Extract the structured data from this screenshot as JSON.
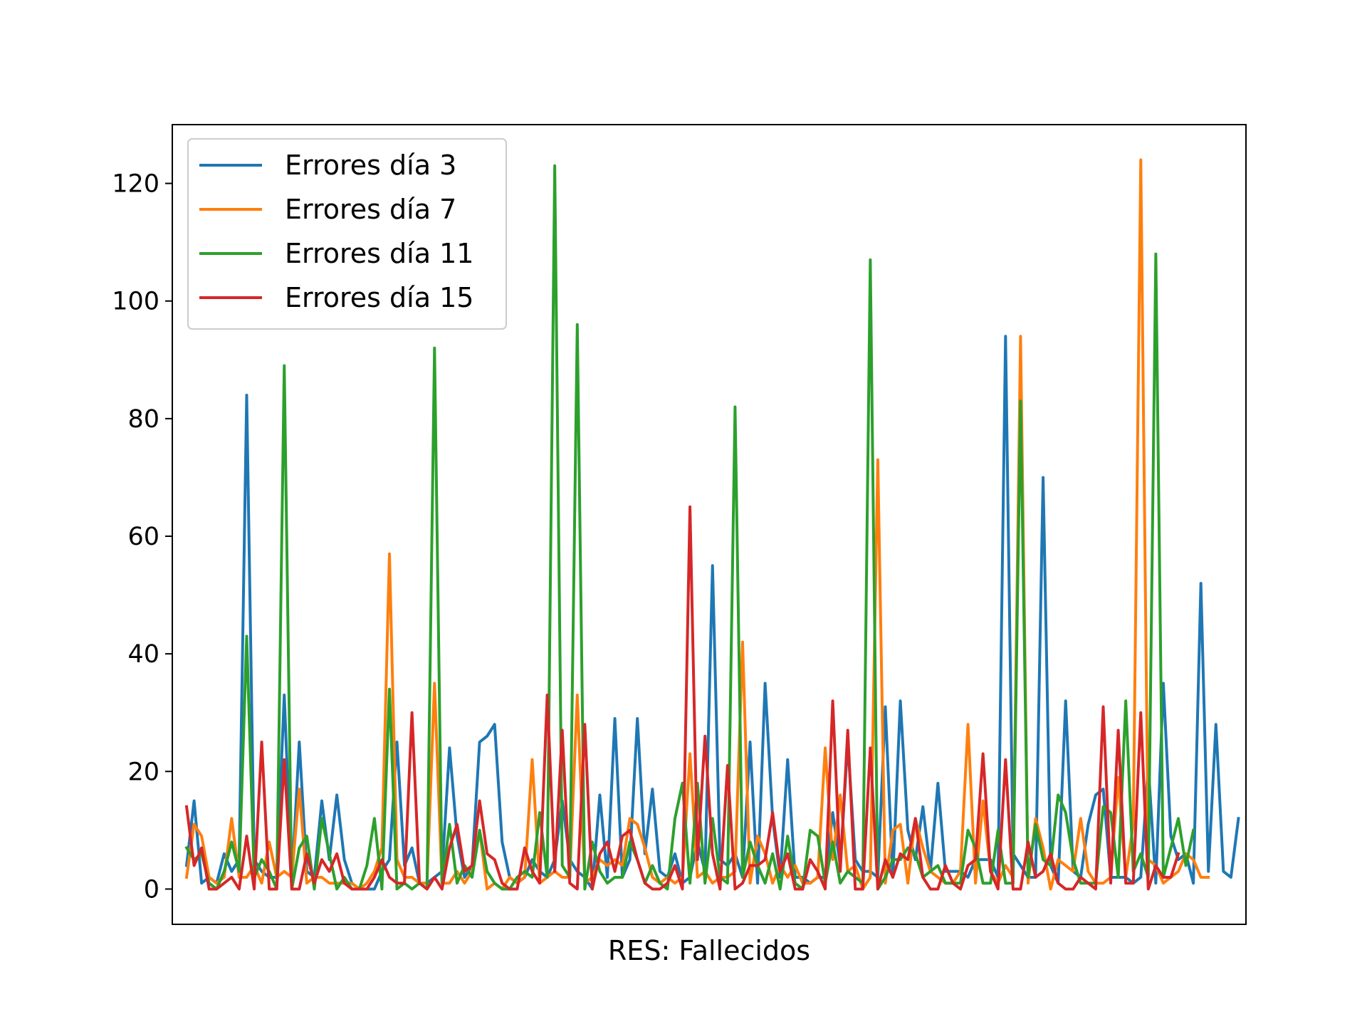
{
  "chart_data": {
    "type": "line",
    "title": "",
    "xlabel": "RES: Fallecidos",
    "ylabel": "",
    "ylim": [
      -6,
      130
    ],
    "xlim": [
      -1.9,
      141
    ],
    "yticks": [
      0,
      20,
      40,
      60,
      80,
      100,
      120
    ],
    "grid": false,
    "legend_position": "top-left",
    "series": [
      {
        "name": "Errores día 3",
        "color": "#1f77b4",
        "values": [
          4,
          15,
          1,
          2,
          1,
          6,
          3,
          5,
          84,
          5,
          3,
          2,
          2,
          33,
          1,
          25,
          3,
          2,
          15,
          5,
          16,
          5,
          1,
          0,
          0,
          0,
          3,
          5,
          25,
          4,
          7,
          1,
          1,
          2,
          3,
          24,
          9,
          2,
          4,
          25,
          26,
          28,
          8,
          2,
          1,
          2,
          5,
          3,
          2,
          5,
          15,
          5,
          3,
          2,
          0,
          16,
          2,
          29,
          2,
          5,
          29,
          6,
          17,
          3,
          2,
          6,
          1,
          2,
          8,
          3,
          55,
          5,
          4,
          6,
          2,
          25,
          1,
          35,
          12,
          2,
          22,
          2,
          2,
          1,
          2,
          2,
          13,
          4,
          25,
          5,
          3,
          3,
          2,
          31,
          2,
          32,
          10,
          5,
          14,
          3,
          18,
          3,
          3,
          3,
          2,
          5,
          5,
          5,
          2,
          94,
          6,
          4,
          2,
          2,
          70,
          4,
          1,
          32,
          3,
          2,
          11,
          16,
          17,
          2,
          2,
          2,
          1,
          2,
          21,
          1,
          35,
          9,
          5,
          6,
          1,
          52,
          3,
          28,
          3,
          2,
          12
        ]
      },
      {
        "name": "Errores día 7",
        "color": "#ff7f0e",
        "values": [
          2,
          11,
          9,
          2,
          1,
          2,
          12,
          2,
          2,
          4,
          1,
          8,
          2,
          3,
          2,
          17,
          1,
          2,
          2,
          1,
          1,
          1,
          1,
          0,
          1,
          3,
          7,
          57,
          5,
          2,
          2,
          1,
          1,
          35,
          1,
          1,
          3,
          1,
          3,
          10,
          0,
          1,
          0,
          2,
          1,
          2,
          22,
          1,
          2,
          3,
          2,
          2,
          33,
          1,
          2,
          5,
          4,
          5,
          4,
          12,
          11,
          7,
          2,
          1,
          2,
          1,
          2,
          23,
          2,
          3,
          1,
          2,
          2,
          3,
          42,
          1,
          9,
          6,
          1,
          4,
          2,
          4,
          1,
          1,
          2,
          24,
          5,
          16,
          3,
          4,
          0,
          2,
          73,
          1,
          10,
          11,
          1,
          12,
          7,
          3,
          2,
          1,
          1,
          3,
          28,
          1,
          15,
          3,
          1,
          4,
          2,
          94,
          1,
          12,
          7,
          0,
          5,
          4,
          3,
          12,
          3,
          1,
          1,
          2,
          19,
          2,
          11,
          124,
          5,
          4,
          1,
          2,
          3,
          6,
          5,
          2,
          2
        ]
      },
      {
        "name": "Errores día 11",
        "color": "#2ca02c",
        "values": [
          7,
          5,
          6,
          1,
          0,
          3,
          8,
          3,
          43,
          2,
          5,
          3,
          0,
          89,
          0,
          7,
          9,
          0,
          12,
          6,
          0,
          2,
          0,
          0,
          4,
          12,
          0,
          34,
          0,
          1,
          0,
          1,
          0,
          92,
          1,
          11,
          1,
          4,
          2,
          10,
          3,
          1,
          0,
          0,
          2,
          3,
          2,
          13,
          2,
          123,
          4,
          2,
          96,
          0,
          8,
          3,
          1,
          2,
          2,
          8,
          5,
          1,
          4,
          1,
          0,
          12,
          18,
          1,
          18,
          1,
          12,
          2,
          1,
          82,
          2,
          8,
          4,
          1,
          6,
          0,
          9,
          1,
          0,
          10,
          9,
          1,
          8,
          1,
          3,
          2,
          1,
          107,
          0,
          2,
          5,
          5,
          7,
          6,
          2,
          3,
          4,
          1,
          1,
          1,
          10,
          7,
          1,
          1,
          10,
          1,
          1,
          83,
          2,
          11,
          5,
          4,
          16,
          13,
          5,
          1,
          1,
          1,
          14,
          13,
          2,
          32,
          3,
          6,
          2,
          108,
          2,
          7,
          12,
          4,
          10
        ]
      },
      {
        "name": "Errores día 15",
        "color": "#d62728",
        "values": [
          14,
          4,
          7,
          0,
          0,
          1,
          2,
          0,
          9,
          0,
          25,
          0,
          0,
          22,
          0,
          0,
          6,
          1,
          5,
          3,
          6,
          1,
          0,
          0,
          0,
          2,
          5,
          2,
          1,
          1,
          30,
          1,
          0,
          2,
          0,
          7,
          11,
          3,
          4,
          15,
          6,
          5,
          1,
          0,
          0,
          7,
          3,
          1,
          33,
          3,
          27,
          1,
          0,
          28,
          0,
          6,
          8,
          3,
          9,
          10,
          5,
          1,
          0,
          0,
          1,
          4,
          0,
          65,
          5,
          26,
          6,
          0,
          21,
          0,
          1,
          4,
          4,
          5,
          13,
          3,
          6,
          0,
          0,
          5,
          3,
          0,
          32,
          3,
          27,
          0,
          0,
          24,
          0,
          5,
          2,
          6,
          5,
          12,
          2,
          0,
          0,
          4,
          1,
          0,
          4,
          5,
          23,
          3,
          0,
          22,
          0,
          0,
          8,
          2,
          3,
          6,
          1,
          0,
          0,
          2,
          1,
          0,
          31,
          1,
          27,
          1,
          1,
          30,
          0,
          4,
          2,
          2,
          6
        ]
      }
    ]
  }
}
